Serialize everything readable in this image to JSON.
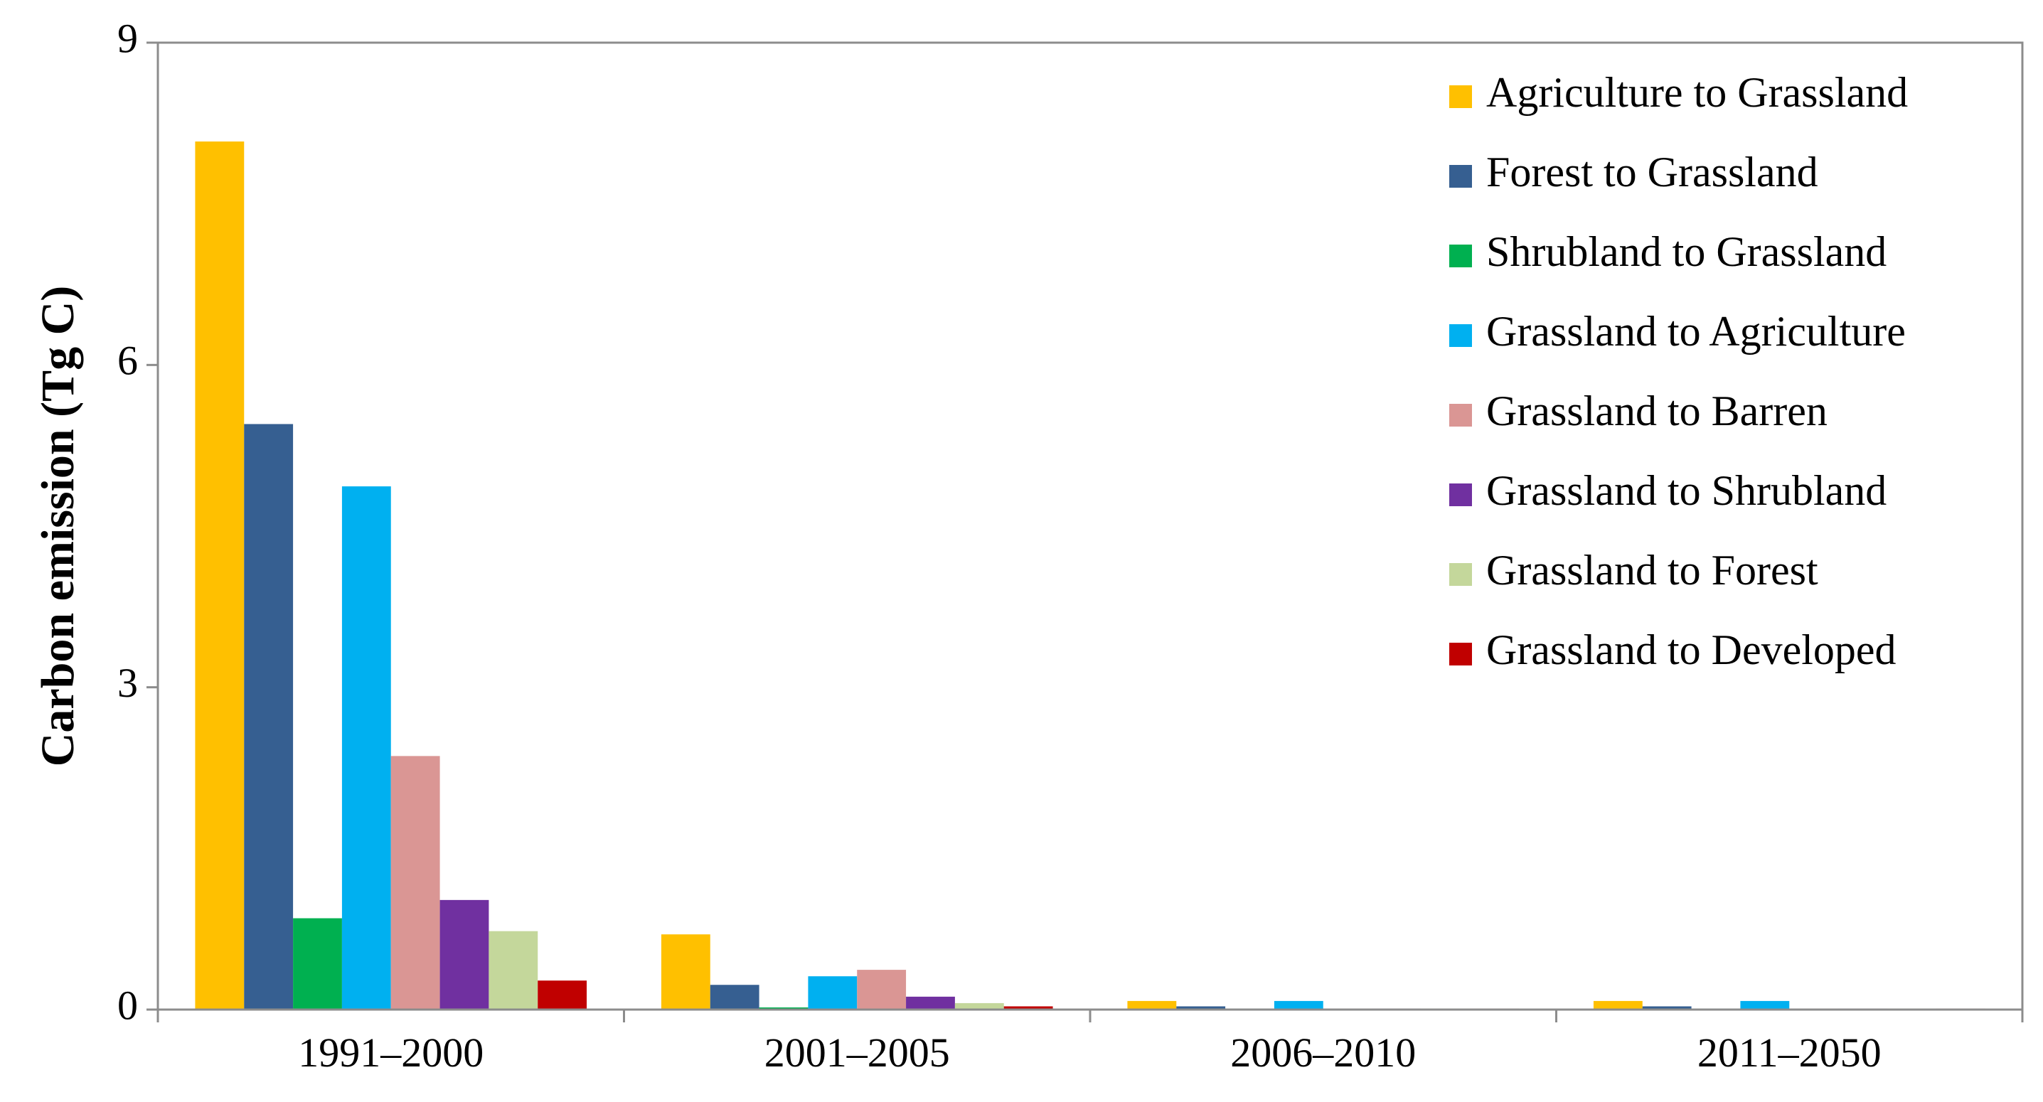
{
  "chart_data": {
    "type": "bar",
    "title": "",
    "xlabel": "",
    "ylabel": "Carbon emission (Tg C)",
    "ylim": [
      0,
      9
    ],
    "yticks": [
      0,
      3,
      6,
      9
    ],
    "grid": false,
    "legend_position": "top-right",
    "categories": [
      "1991–2000",
      "2001–2005",
      "2006–2010",
      "2011–2050"
    ],
    "series": [
      {
        "name": "Agriculture to Grassland",
        "color": "#FFC000",
        "values": [
          8.08,
          0.7,
          0.08,
          0.08
        ]
      },
      {
        "name": "Forest to Grassland",
        "color": "#365F91",
        "values": [
          5.45,
          0.23,
          0.03,
          0.03
        ]
      },
      {
        "name": "Shrubland to Grassland",
        "color": "#00B050",
        "values": [
          0.85,
          0.02,
          0.01,
          0.01
        ]
      },
      {
        "name": "Grassland to Agriculture",
        "color": "#00B0F0",
        "values": [
          4.87,
          0.31,
          0.08,
          0.08
        ]
      },
      {
        "name": "Grassland to Barren",
        "color": "#DA9694",
        "values": [
          2.36,
          0.37,
          0.01,
          0.01
        ]
      },
      {
        "name": "Grassland to Shrubland",
        "color": "#7030A0",
        "values": [
          1.02,
          0.12,
          0.01,
          0.01
        ]
      },
      {
        "name": "Grassland to Forest",
        "color": "#C4D79B",
        "values": [
          0.73,
          0.06,
          0.01,
          0.01
        ]
      },
      {
        "name": "Grassland to Developed",
        "color": "#C00000",
        "values": [
          0.27,
          0.03,
          0.01,
          0.01
        ]
      }
    ]
  }
}
